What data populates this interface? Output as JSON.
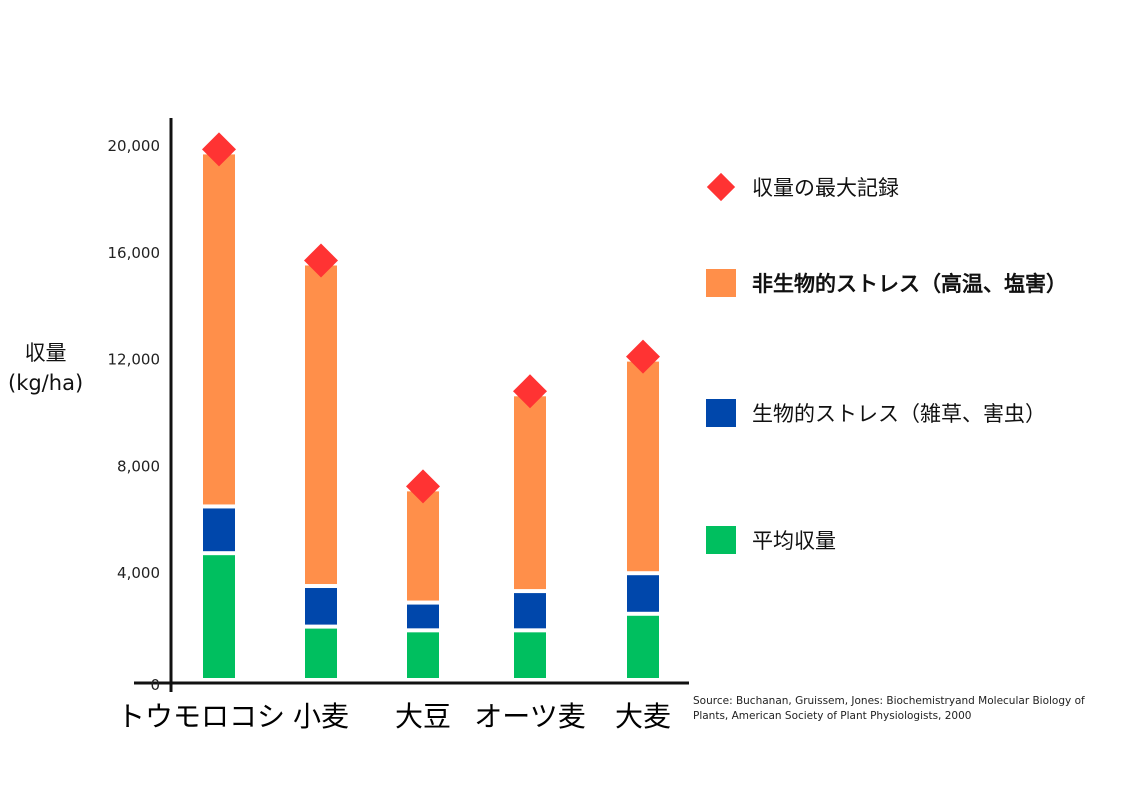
{
  "chart_data": {
    "type": "bar",
    "stacked": true,
    "title": "",
    "xlabel": "",
    "ylabel": "収量\n(kg/ha)",
    "ylabel_lines": [
      "収量",
      "(kg/ha)"
    ],
    "ylim": [
      0,
      20000
    ],
    "y_ticks": [
      0,
      4000,
      8000,
      12000,
      16000,
      20000
    ],
    "y_tick_labels": [
      "0",
      "4,000",
      "8,000",
      "12,000",
      "16,000",
      "20,000"
    ],
    "categories": [
      "トウモロコシ",
      "小麦",
      "大豆",
      "オーツ麦",
      "大麦"
    ],
    "series": [
      {
        "name": "平均収量",
        "color": "#00bf5f",
        "values": [
          4750,
          2000,
          1860,
          1860,
          2480
        ]
      },
      {
        "name": "生物的ストレス（雑草、害虫）",
        "color": "#0047ab",
        "values": [
          1750,
          1520,
          1040,
          1470,
          1520
        ]
      },
      {
        "name": "非生物的ストレス（高温、塩害）",
        "color": "#ff8f4a",
        "values": [
          13260,
          12080,
          4240,
          7370,
          8000
        ]
      }
    ],
    "markers": {
      "name": "収量の最大記録",
      "color": "#ff3333",
      "values": [
        19760,
        15600,
        7140,
        10700,
        12000
      ]
    },
    "grid": false,
    "legend_position": "right"
  },
  "legend": {
    "items": [
      {
        "label": "収量の最大記録",
        "shape": "diamond",
        "color": "#ff3333"
      },
      {
        "label": "非生物的ストレス（高温、塩害）",
        "shape": "square",
        "color": "#ff8f4a"
      },
      {
        "label": "生物的ストレス（雑草、害虫）",
        "shape": "square",
        "color": "#0047ab"
      },
      {
        "label": "平均収量",
        "shape": "square",
        "color": "#00bf5f"
      }
    ]
  },
  "source": {
    "line1": "Source: Buchanan, Gruissem, Jones: Biochemistryand Molecular Biology of",
    "line2": "Plants, American Society of Plant Physiologists, 2000"
  }
}
